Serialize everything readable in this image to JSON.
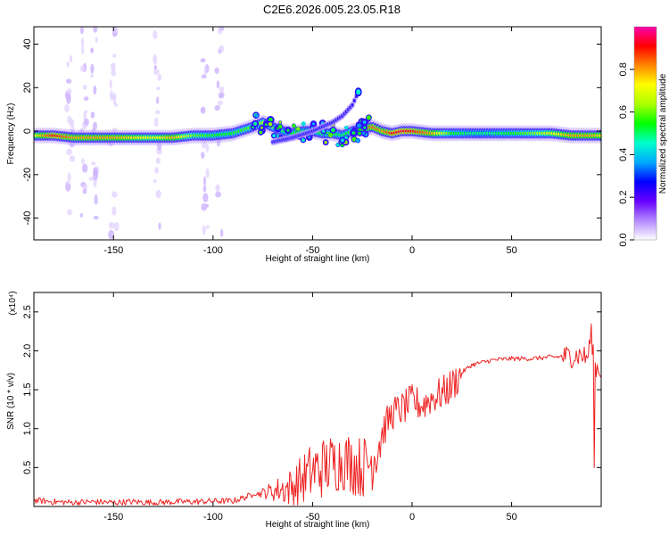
{
  "title": "C2E6.2026.005.23.05.R18",
  "chart_data": [
    {
      "type": "heatmap",
      "xlabel": "Height of straight line (km)",
      "ylabel": "Frequency (Hz)",
      "xlim": [
        -190,
        95
      ],
      "ylim": [
        -50,
        48
      ],
      "x_ticks": [
        -150,
        -100,
        -50,
        0,
        50
      ],
      "y_ticks": [
        40,
        20,
        0,
        -20,
        -40
      ],
      "grid": false,
      "colorbar": {
        "label": "Normalized spectral amplitude",
        "range": [
          0,
          1
        ],
        "ticks": [
          "0.0",
          "0.2",
          "0.4",
          "0.6",
          "0.8"
        ],
        "tick_values": [
          0,
          0.2,
          0.4,
          0.6,
          0.8
        ],
        "colors": [
          "#ffffff",
          "#b388ff",
          "#6600ff",
          "#0000ff",
          "#00aaff",
          "#00ffcc",
          "#00ff00",
          "#aaff00",
          "#ffff00",
          "#ff8800",
          "#ff0000",
          "#ff00aa"
        ]
      },
      "ridge": {
        "x": [
          -190,
          -180,
          -170,
          -160,
          -150,
          -140,
          -130,
          -120,
          -110,
          -100,
          -90,
          -80,
          -75,
          -70,
          -65,
          -60,
          -55,
          -50,
          -45,
          -40,
          -35,
          -30,
          -25,
          -20,
          -15,
          -10,
          -5,
          0,
          10,
          20,
          30,
          40,
          50,
          60,
          70,
          80,
          90,
          95
        ],
        "y": [
          -2,
          -2,
          -3,
          -3,
          -3,
          -3,
          -3,
          -3,
          -2,
          -2,
          -1,
          2,
          4,
          2,
          0,
          -1,
          0,
          0,
          -1,
          -1,
          -2,
          0,
          1,
          2,
          0,
          -1,
          0,
          0,
          -1,
          -1,
          -1,
          -1,
          -1,
          -1,
          -1,
          -2,
          -2,
          -2
        ],
        "amplitude": [
          0.7,
          0.9,
          0.8,
          0.8,
          0.8,
          0.75,
          0.7,
          0.8,
          0.6,
          0.55,
          0.55,
          0.6,
          0.65,
          0.6,
          0.5,
          0.55,
          0.5,
          0.5,
          0.55,
          0.55,
          0.5,
          0.6,
          0.7,
          0.85,
          0.8,
          0.9,
          0.95,
          0.9,
          0.8,
          0.55,
          0.5,
          0.5,
          0.55,
          0.6,
          0.7,
          0.8,
          0.8,
          0.75
        ]
      },
      "side_branch": {
        "x": [
          -70,
          -60,
          -50,
          -40,
          -35,
          -30,
          -27
        ],
        "y": [
          -5,
          -3,
          0,
          4,
          7,
          12,
          18
        ]
      }
    },
    {
      "type": "line",
      "xlabel": "Height of straight line (km)",
      "ylabel": "SNR (10 * v/v)",
      "y_multiplier": "(x10⁴)",
      "xlim": [
        -190,
        95
      ],
      "ylim": [
        0,
        2.75
      ],
      "x_ticks": [
        -150,
        -100,
        -50,
        0,
        50
      ],
      "y_ticks": [
        0.5,
        1.0,
        1.5,
        2.0,
        2.5
      ],
      "y_tick_labels": [
        "0.5",
        "1.0",
        "1.5",
        "2.0",
        "2.5"
      ],
      "grid": false,
      "series": [
        {
          "color": "#ee2222",
          "x": [
            -190,
            -180,
            -170,
            -160,
            -150,
            -140,
            -130,
            -120,
            -110,
            -100,
            -90,
            -80,
            -70,
            -60,
            -50,
            -45,
            -40,
            -35,
            -30,
            -25,
            -20,
            -15,
            -10,
            -5,
            0,
            5,
            10,
            15,
            20,
            25,
            30,
            40,
            50,
            60,
            70,
            80,
            85,
            88,
            90,
            92,
            95
          ],
          "y": [
            0.08,
            0.06,
            0.05,
            0.06,
            0.05,
            0.06,
            0.05,
            0.06,
            0.06,
            0.07,
            0.07,
            0.15,
            0.2,
            0.25,
            0.45,
            0.5,
            0.55,
            0.6,
            0.55,
            0.5,
            0.6,
            0.95,
            1.2,
            1.25,
            1.35,
            1.3,
            1.4,
            1.45,
            1.55,
            1.72,
            1.82,
            1.88,
            1.9,
            1.9,
            1.92,
            1.93,
            1.95,
            1.9,
            2.2,
            1.8,
            1.75
          ]
        }
      ]
    }
  ]
}
